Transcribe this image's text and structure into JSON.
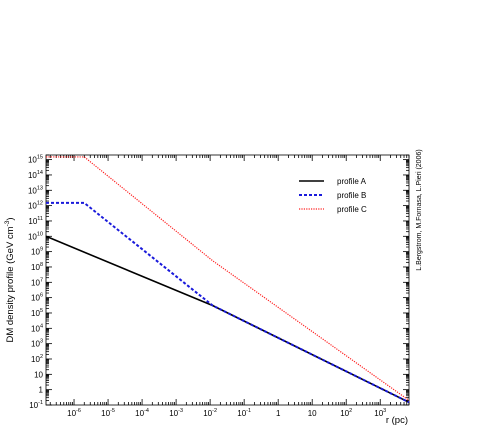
{
  "chart_data": {
    "type": "line",
    "xlabel": "r (pc)",
    "ylabel": "DM density profile (GeV cm",
    "ylabel_exp": "-3",
    "ylabel_close": ")",
    "credit": "L.Bergstrom, M.Fornasa, L.Pieri (2006)",
    "xscale": "log",
    "yscale": "log",
    "xlim": [
      1.5e-07,
      7000
    ],
    "ylim": [
      0.1,
      2000000000000000.0
    ],
    "grid": false,
    "legend_position": "top-right",
    "x_ticks": [
      {
        "base": "10",
        "exp": "-6",
        "value": 1e-06
      },
      {
        "base": "10",
        "exp": "-5",
        "value": 1e-05
      },
      {
        "base": "10",
        "exp": "-4",
        "value": 0.0001
      },
      {
        "base": "10",
        "exp": "-3",
        "value": 0.001
      },
      {
        "base": "10",
        "exp": "-2",
        "value": 0.01
      },
      {
        "base": "10",
        "exp": "-1",
        "value": 0.1
      },
      {
        "base": "1",
        "exp": "",
        "value": 1
      },
      {
        "base": "10",
        "exp": "",
        "value": 10
      },
      {
        "base": "10",
        "exp": "2",
        "value": 100
      },
      {
        "base": "10",
        "exp": "3",
        "value": 1000
      }
    ],
    "y_ticks": [
      {
        "base": "10",
        "exp": "-1",
        "value": 0.1
      },
      {
        "base": "1",
        "exp": "",
        "value": 1
      },
      {
        "base": "10",
        "exp": "",
        "value": 10
      },
      {
        "base": "10",
        "exp": "2",
        "value": 100.0
      },
      {
        "base": "10",
        "exp": "3",
        "value": 1000.0
      },
      {
        "base": "10",
        "exp": "4",
        "value": 10000.0
      },
      {
        "base": "10",
        "exp": "5",
        "value": 100000.0
      },
      {
        "base": "10",
        "exp": "6",
        "value": 1000000.0
      },
      {
        "base": "10",
        "exp": "7",
        "value": 10000000.0
      },
      {
        "base": "10",
        "exp": "8",
        "value": 100000000.0
      },
      {
        "base": "10",
        "exp": "9",
        "value": 1000000000.0
      },
      {
        "base": "10",
        "exp": "10",
        "value": 10000000000.0
      },
      {
        "base": "10",
        "exp": "11",
        "value": 100000000000.0
      },
      {
        "base": "10",
        "exp": "12",
        "value": 1000000000000.0
      },
      {
        "base": "10",
        "exp": "13",
        "value": 10000000000000.0
      },
      {
        "base": "10",
        "exp": "14",
        "value": 100000000000000.0
      },
      {
        "base": "10",
        "exp": "15",
        "value": 1000000000000000.0
      }
    ],
    "series": [
      {
        "name": "profile A",
        "color": "#000000",
        "dash": "solid",
        "x": [
          1.5e-07,
          0.012,
          7000
        ],
        "y": [
          10000000000.0,
          300000.0,
          0.15
        ]
      },
      {
        "name": "profile B",
        "color": "#1a1adb",
        "dash": "dashed",
        "x": [
          1.5e-07,
          2e-06,
          0.012,
          7000
        ],
        "y": [
          1500000000000.0,
          1500000000000.0,
          300000.0,
          0.15
        ]
      },
      {
        "name": "profile C",
        "color": "#ff2020",
        "dash": "dotted",
        "x": [
          1.5e-07,
          2e-06,
          0.012,
          7000
        ],
        "y": [
          1500000000000000.0,
          1500000000000000.0,
          250000000.0,
          0.2
        ]
      }
    ]
  }
}
